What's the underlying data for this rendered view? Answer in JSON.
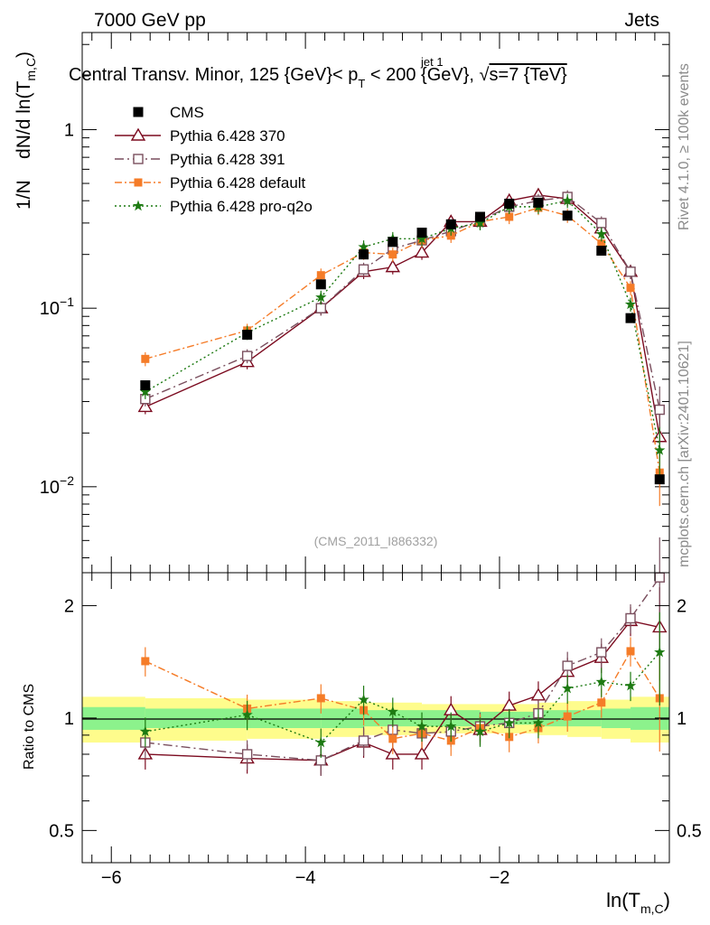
{
  "header": {
    "energy_label": "7000 GeV pp",
    "process_label": "Jets"
  },
  "side_labels": {
    "rivet": "Rivet 4.1.0, ≥ 100k events",
    "mcplots": "mcplots.cern.ch [arXiv:2401.10621]"
  },
  "chart_data": [
    {
      "type": "scatter",
      "title": "Central Transv. Minor, 125 {GeV}< p_T^jet 1 < 200 {GeV}, √s=7 {TeV}",
      "title_parts": {
        "before": "Central Transv. Minor, 125 {GeV}< p",
        "sup": "jet 1",
        "sub": "T",
        "after": " < 200 {GeV}, ",
        "sqrt": "√",
        "s_part": "s=7 {TeV}"
      },
      "ylabel": "1/N   dN/d ln(T_m,C)",
      "ylabel_parts": {
        "main": "1/N    dN/d ln(T",
        "sub": "m,C",
        "close": ")"
      },
      "xlabel": "ln(T_m,C)",
      "xlabel_parts": {
        "main": "ln(T",
        "sub": "m,C",
        "close": ")"
      },
      "yscale": "log",
      "ylim": [
        0.0033,
        3.5
      ],
      "xlim": [
        -6.3,
        -0.25
      ],
      "y_tick_labels": [
        {
          "base": "10",
          "exp": "−2",
          "value": 0.01
        },
        {
          "base": "10",
          "exp": "−1",
          "value": 0.1
        },
        {
          "base": "1",
          "exp": "",
          "value": 1
        }
      ],
      "watermark": "(CMS_2011_I886332)",
      "legend": [
        "CMS",
        "Pythia 6.428 370",
        "Pythia 6.428 391",
        "Pythia 6.428 default",
        "Pythia 6.428 pro-q2o"
      ],
      "x": [
        -5.65,
        -4.6,
        -3.84,
        -3.4,
        -3.1,
        -2.8,
        -2.5,
        -2.2,
        -1.9,
        -1.6,
        -1.3,
        -0.95,
        -0.65,
        -0.35
      ],
      "series": [
        {
          "name": "CMS",
          "color": "#000000",
          "marker": "square-filled",
          "values": [
            0.037,
            0.071,
            0.136,
            0.2,
            0.235,
            0.265,
            0.295,
            0.325,
            0.385,
            0.39,
            0.33,
            0.21,
            0.088,
            0.011
          ]
        },
        {
          "name": "Pythia 6.428 370",
          "color": "#7b0a1f",
          "marker": "triangle-open",
          "dash": "",
          "values": [
            0.028,
            0.05,
            0.1,
            0.16,
            0.17,
            0.205,
            0.305,
            0.305,
            0.4,
            0.43,
            0.41,
            0.28,
            0.16,
            0.019
          ]
        },
        {
          "name": "Pythia 6.428 391",
          "color": "#7a4f5e",
          "marker": "square-open",
          "dash": "10,4,2,4",
          "values": [
            0.031,
            0.054,
            0.1,
            0.165,
            0.215,
            0.24,
            0.27,
            0.31,
            0.37,
            0.4,
            0.42,
            0.3,
            0.16,
            0.027
          ]
        },
        {
          "name": "Pythia 6.428 default",
          "color": "#f57c28",
          "marker": "square-filled-small",
          "dash": "8,3,2,3",
          "values": [
            0.052,
            0.075,
            0.153,
            0.205,
            0.2,
            0.24,
            0.255,
            0.305,
            0.325,
            0.365,
            0.33,
            0.23,
            0.13,
            0.012
          ]
        },
        {
          "name": "Pythia 6.428 pro-q2o",
          "color": "#1d7a12",
          "marker": "star",
          "dash": "2,3",
          "values": [
            0.034,
            0.073,
            0.115,
            0.22,
            0.245,
            0.245,
            0.28,
            0.3,
            0.37,
            0.37,
            0.4,
            0.26,
            0.105,
            0.016
          ]
        }
      ]
    },
    {
      "type": "scatter",
      "ylabel": "Ratio to CMS",
      "yscale": "log",
      "ylim": [
        0.41,
        2.45
      ],
      "y_tick_labels": [
        "0.5",
        "1",
        "2"
      ],
      "y_tick_values": [
        0.5,
        1,
        2
      ],
      "x_tick_labels": [
        "−6",
        "−4",
        "−2"
      ],
      "x_tick_values": [
        -6,
        -4,
        -2
      ],
      "band_x": [
        -6.3,
        -5.65,
        -4.6,
        -3.84,
        -3.4,
        -3.1,
        -2.8,
        -2.5,
        -2.2,
        -1.9,
        -1.6,
        -1.3,
        -0.95,
        -0.65,
        -0.25
      ],
      "band_yellow": [
        0.14,
        0.13,
        0.12,
        0.11,
        0.1,
        0.1,
        0.09,
        0.09,
        0.09,
        0.09,
        0.1,
        0.11,
        0.12,
        0.14,
        0.16
      ],
      "band_green": [
        0.07,
        0.06,
        0.06,
        0.06,
        0.05,
        0.05,
        0.05,
        0.05,
        0.04,
        0.04,
        0.05,
        0.05,
        0.06,
        0.07,
        0.08
      ],
      "x": [
        -5.65,
        -4.6,
        -3.84,
        -3.4,
        -3.1,
        -2.8,
        -2.5,
        -2.2,
        -1.9,
        -1.6,
        -1.3,
        -0.95,
        -0.65,
        -0.35
      ],
      "series": [
        {
          "name": "Pythia 6.428 370",
          "color": "#7b0a1f",
          "values": [
            0.8,
            0.78,
            0.77,
            0.86,
            0.8,
            0.8,
            1.05,
            0.93,
            1.08,
            1.15,
            1.33,
            1.45,
            1.82,
            1.75
          ]
        },
        {
          "name": "Pythia 6.428 391",
          "color": "#7a4f5e",
          "values": [
            0.86,
            0.8,
            0.77,
            0.87,
            0.93,
            0.91,
            0.92,
            0.95,
            0.97,
            1.03,
            1.38,
            1.5,
            1.85,
            2.38
          ]
        },
        {
          "name": "Pythia 6.428 default",
          "color": "#f57c28",
          "values": [
            1.42,
            1.06,
            1.13,
            1.05,
            0.88,
            0.91,
            0.87,
            0.94,
            0.89,
            0.94,
            1.01,
            1.1,
            1.51,
            1.13
          ]
        },
        {
          "name": "Pythia 6.428 pro-q2o",
          "color": "#1d7a12",
          "values": [
            0.92,
            1.02,
            0.86,
            1.12,
            1.04,
            0.95,
            0.95,
            0.92,
            0.97,
            0.97,
            1.2,
            1.25,
            1.22,
            1.5
          ]
        }
      ]
    }
  ]
}
